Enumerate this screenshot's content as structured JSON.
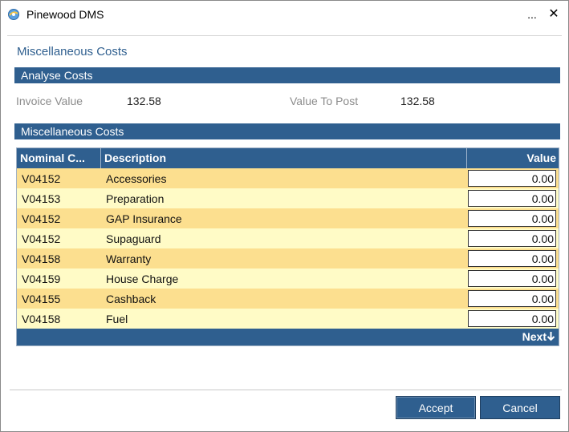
{
  "window": {
    "title": "Pinewood DMS",
    "more_label": "...",
    "close_label": "✕"
  },
  "page": {
    "title": "Miscellaneous Costs"
  },
  "analyse_section": {
    "header": "Analyse Costs",
    "invoice_label": "Invoice Value",
    "invoice_value": "132.58",
    "post_label": "Value To Post",
    "post_value": "132.58"
  },
  "misc_section": {
    "header": "Miscellaneous Costs",
    "columns": {
      "nominal": "Nominal C...",
      "description": "Description",
      "value": "Value"
    },
    "rows": [
      {
        "nominal": "V04152",
        "description": "Accessories",
        "value": "0.00"
      },
      {
        "nominal": "V04153",
        "description": "Preparation",
        "value": "0.00"
      },
      {
        "nominal": "V04152",
        "description": "GAP Insurance",
        "value": "0.00"
      },
      {
        "nominal": "V04152",
        "description": "Supaguard",
        "value": "0.00"
      },
      {
        "nominal": "V04158",
        "description": "Warranty",
        "value": "0.00"
      },
      {
        "nominal": "V04159",
        "description": "House Charge",
        "value": "0.00"
      },
      {
        "nominal": "V04155",
        "description": "Cashback",
        "value": "0.00"
      },
      {
        "nominal": "V04158",
        "description": "Fuel",
        "value": "0.00"
      }
    ],
    "next_label": "Next",
    "next_icon": "arrow-down-icon"
  },
  "buttons": {
    "accept": "Accept",
    "cancel": "Cancel"
  },
  "colors": {
    "header_blue": "#2f5f8f",
    "row_odd": "#fcdf8f",
    "row_even": "#fffbc6"
  }
}
